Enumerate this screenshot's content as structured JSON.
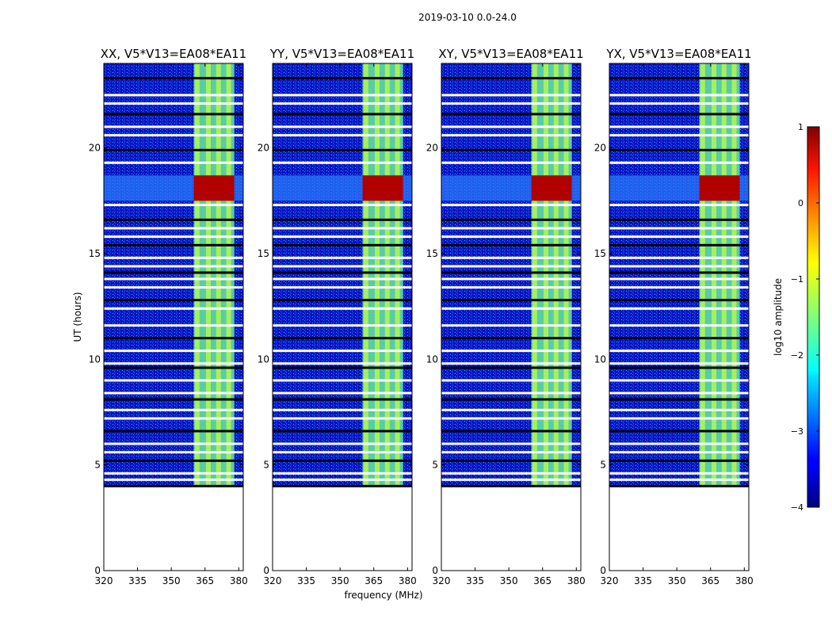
{
  "chart_data": {
    "type": "heatmap",
    "suptitle": "2019-03-10 0.0-24.0",
    "xlabel": "frequency (MHz)",
    "ylabel": "UT (hours)",
    "xlim": [
      320,
      382
    ],
    "ylim": [
      0,
      24
    ],
    "xticks": [
      320,
      335,
      350,
      365,
      380
    ],
    "yticks": [
      0,
      5,
      10,
      15,
      20
    ],
    "panels": [
      {
        "title": "XX, V5*V13=EA08*EA11",
        "pol": "XX"
      },
      {
        "title": "YY, V5*V13=EA08*EA11",
        "pol": "YY"
      },
      {
        "title": "XY, V5*V13=EA08*EA11",
        "pol": "XY"
      },
      {
        "title": "YX, V5*V13=EA08*EA11",
        "pol": "YX"
      }
    ],
    "data_start_hour": 4.0,
    "data_end_hour": 24.0,
    "bright_band_mhz": [
      360,
      378
    ],
    "bright_channels_mhz": [
      361.5,
      366.5,
      371,
      375.5
    ],
    "flare_hours": [
      [
        17.5,
        18.7
      ]
    ],
    "flagged_hours": [
      4.0,
      4.3,
      4.6,
      5.2,
      5.6,
      6.0,
      6.6,
      7.2,
      7.6,
      8.1,
      8.4,
      9.0,
      9.6,
      9.8,
      10.4,
      11.0,
      11.6,
      12.4,
      12.8,
      13.4,
      13.8,
      14.1,
      14.4,
      14.8,
      15.4,
      15.8,
      16.2,
      16.6,
      17.3,
      19.3,
      19.9,
      20.6,
      21.0,
      21.6,
      22.1,
      22.5,
      23.3
    ]
  },
  "colorbar": {
    "label": "log10 amplitude",
    "vmin": -4,
    "vmax": 1,
    "ticks": [
      1,
      0,
      -1,
      -2,
      -3,
      -4
    ],
    "tick_labels": [
      "1",
      "0",
      "−1",
      "−2",
      "−3",
      "−4"
    ]
  },
  "colors": {
    "background_low": "#0a16c8",
    "band": "#5fe0a0",
    "flare": "#b00000",
    "flag": "#ffffff"
  }
}
